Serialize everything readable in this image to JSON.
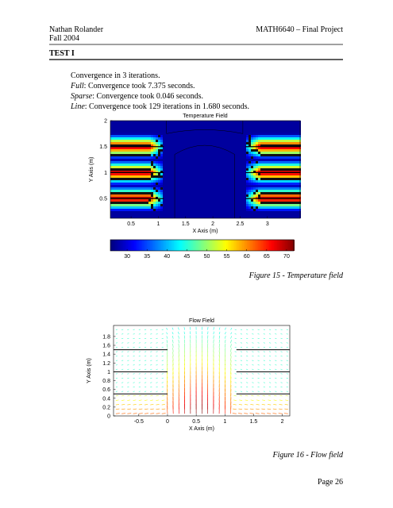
{
  "header": {
    "author": "Nathan Rolander",
    "date": "Fall 2004",
    "course": "MATH6640 – Final Project"
  },
  "section": {
    "title": "TEST I"
  },
  "body": {
    "first": "Convergence in 3 iterations.",
    "lines": [
      {
        "label": "Full",
        "text": ": Convergence took 7.375 seconds."
      },
      {
        "label": "Sparse",
        "text": ": Convergence took 0.046 seconds."
      },
      {
        "label": "Line",
        "text": ": Convergence took 129 iterations in 1.680 seconds."
      }
    ]
  },
  "figures": [
    {
      "title": "Temperature Field",
      "x_label": "X Axis (m)",
      "y_label": "Y Axis (m)",
      "xlim": [
        0.12,
        3.6
      ],
      "xticks": [
        0.5,
        1,
        1.5,
        2,
        2.5,
        3
      ],
      "ylim": [
        0.12,
        2
      ],
      "yticks": [
        0.5,
        1,
        1.5,
        2
      ],
      "colorbar": {
        "lim": [
          25.8,
          71.8
        ],
        "ticks": [
          30,
          35,
          40,
          45,
          50,
          55,
          60,
          65,
          70
        ]
      },
      "caption": "Figure 15 - Temperature field"
    },
    {
      "title": "Flow Field",
      "x_label": "X Axis (m)",
      "y_label": "Y Axis (m)",
      "xlim": [
        -0.94,
        2.13
      ],
      "xticks": [
        -0.5,
        0,
        0.5,
        1,
        1.5,
        2
      ],
      "ylim": [
        0,
        2.05
      ],
      "yticks": [
        0,
        0.2,
        0.4,
        0.6,
        0.8,
        1,
        1.2,
        1.4,
        1.6,
        1.8
      ],
      "caption": "Figure 16 - Flow field"
    }
  ],
  "footer": {
    "page": "Page 26"
  }
}
